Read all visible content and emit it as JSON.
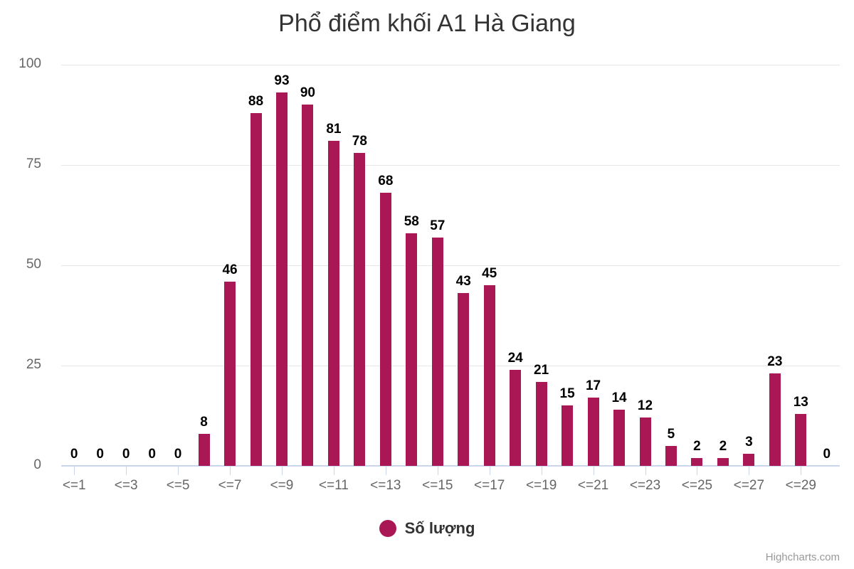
{
  "chart_data": {
    "type": "bar",
    "title": "Phổ điểm khối A1 Hà Giang",
    "xlabel": "",
    "ylabel": "",
    "ylim": [
      0,
      100
    ],
    "yticks": [
      0,
      25,
      50,
      75,
      100
    ],
    "grid": true,
    "legend_position": "bottom",
    "categories": [
      "<=1",
      "<=2",
      "<=3",
      "<=4",
      "<=5",
      "<=6",
      "<=7",
      "<=8",
      "<=9",
      "<=10",
      "<=11",
      "<=12",
      "<=13",
      "<=14",
      "<=15",
      "<=16",
      "<=17",
      "<=18",
      "<=19",
      "<=20",
      "<=21",
      "<=22",
      "<=23",
      "<=24",
      "<=25",
      "<=26",
      "<=27",
      "<=28",
      "<=29",
      "<=30"
    ],
    "visible_tick_labels": [
      "<=1",
      "<=3",
      "<=5",
      "<=7",
      "<=9",
      "<=11",
      "<=13",
      "<=15",
      "<=17",
      "<=19",
      "<=21",
      "<=23",
      "<=25",
      "<=27",
      "<=29"
    ],
    "series": [
      {
        "name": "Số lượng",
        "color": "#AA1755",
        "values": [
          0,
          0,
          0,
          0,
          0,
          8,
          46,
          88,
          93,
          90,
          81,
          78,
          68,
          58,
          57,
          43,
          45,
          24,
          21,
          15,
          17,
          14,
          12,
          5,
          2,
          2,
          3,
          23,
          13,
          0
        ]
      }
    ]
  },
  "legend": {
    "label": "Số lượng",
    "color": "#AA1755"
  },
  "credits": "Highcharts.com"
}
